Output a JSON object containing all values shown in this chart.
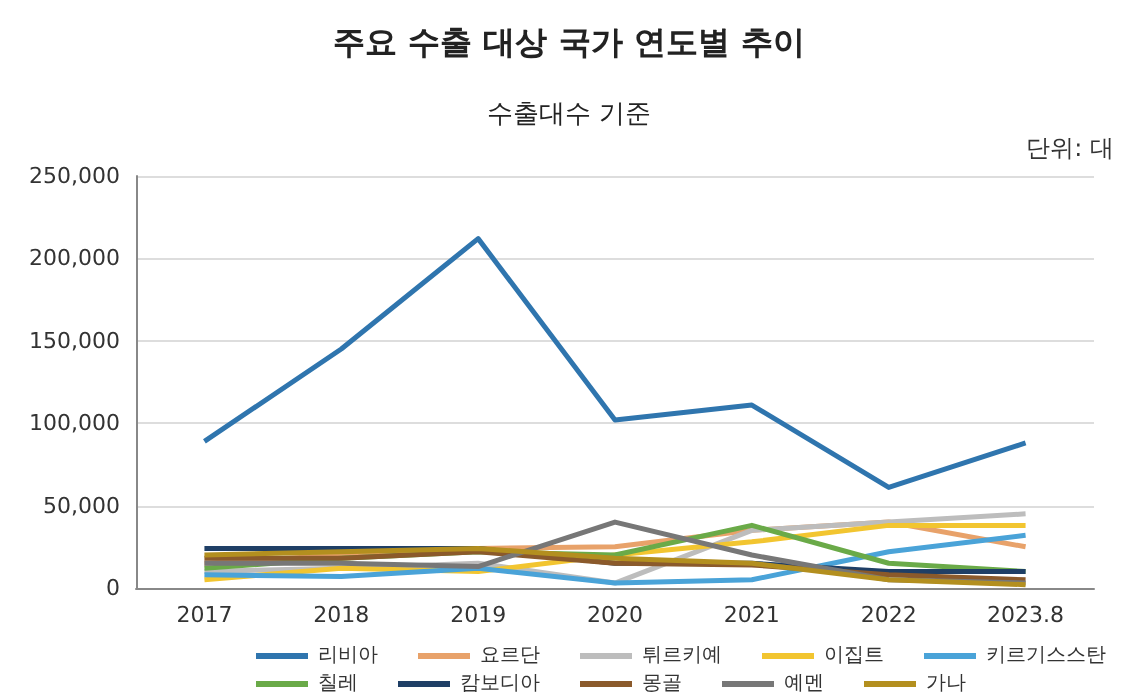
{
  "chart_data": {
    "type": "line",
    "title": "주요 수출 대상 국가 연도별 추이",
    "subtitle": "수출대수 기준",
    "annotations": [
      "단위: 대"
    ],
    "categories": [
      "2017",
      "2018",
      "2019",
      "2020",
      "2021",
      "2022",
      "2023.8"
    ],
    "series": [
      {
        "name": "리비아",
        "color": "#2f75ae",
        "values": [
          89000,
          145000,
          212000,
          102000,
          111000,
          61000,
          88000
        ]
      },
      {
        "name": "요르단",
        "color": "#e8a26a",
        "values": [
          15000,
          20000,
          24000,
          25000,
          35000,
          40000,
          25000
        ]
      },
      {
        "name": "튀르키예",
        "color": "#bdbdbd",
        "values": [
          10000,
          12000,
          15000,
          3000,
          35000,
          40000,
          45000
        ]
      },
      {
        "name": "이집트",
        "color": "#f2c530",
        "values": [
          5000,
          12000,
          10000,
          20000,
          28000,
          38000,
          38000
        ]
      },
      {
        "name": "키르기스스탄",
        "color": "#4aa3d8",
        "values": [
          8000,
          7000,
          12000,
          3000,
          5000,
          22000,
          32000
        ]
      },
      {
        "name": "칠레",
        "color": "#6aaa48",
        "values": [
          12000,
          18000,
          22000,
          20000,
          38000,
          15000,
          10000
        ]
      },
      {
        "name": "캄보디아",
        "color": "#1f3f66",
        "values": [
          24000,
          24000,
          24000,
          15000,
          15000,
          10000,
          10000
        ]
      },
      {
        "name": "몽골",
        "color": "#8b5a2b",
        "values": [
          18000,
          18000,
          22000,
          15000,
          14000,
          8000,
          5000
        ]
      },
      {
        "name": "예멘",
        "color": "#777777",
        "values": [
          15000,
          15000,
          13000,
          40000,
          20000,
          5000,
          3000
        ]
      },
      {
        "name": "가나",
        "color": "#b38f1f",
        "values": [
          20000,
          22000,
          24000,
          18000,
          15000,
          5000,
          2000
        ]
      }
    ],
    "ylim": [
      0,
      250000
    ],
    "yticks": [
      0,
      {
        "value": 50000,
        "label": "50,000"
      },
      {
        "value": 100000,
        "label": "100,000"
      },
      {
        "value": 150000,
        "label": "150,000"
      },
      {
        "value": 200000,
        "label": "200,000"
      },
      {
        "value": 250000,
        "label": "250,000"
      }
    ],
    "grid": "y",
    "legend": "bottom",
    "marker": "none",
    "line_style": "solid"
  }
}
